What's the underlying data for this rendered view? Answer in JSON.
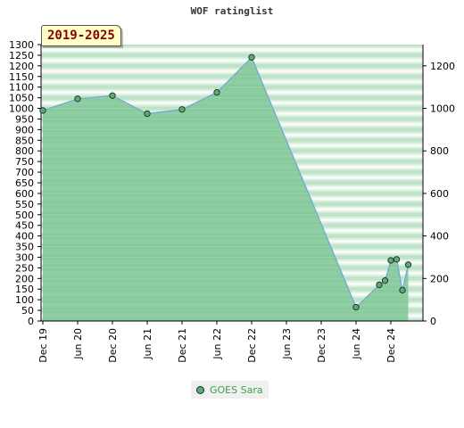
{
  "chart_data": {
    "type": "area",
    "title": "WOF ratinglist",
    "period": "2019-2025",
    "x_tick_labels": [
      "Dec 19",
      "Jun 20",
      "Dec 20",
      "Jun 21",
      "Dec 21",
      "Jun 22",
      "Dec 22",
      "Jun 23",
      "Dec 23",
      "Jun 24",
      "Dec 24"
    ],
    "y_left": {
      "min": 0,
      "max": 1300,
      "step": 50
    },
    "y_right": {
      "min": 0,
      "max": 1300,
      "ticks": [
        0,
        200,
        400,
        600,
        800,
        1000,
        1200
      ]
    },
    "series": [
      {
        "name": "GOES Sara",
        "x": [
          "Dec 19",
          "Jun 20",
          "Dec 20",
          "Jun 21",
          "Dec 21",
          "Jun 22",
          "Dec 22",
          "Jun 24",
          "Oct 24",
          "Nov 24",
          "Dec 24",
          "Jan 25",
          "Feb 25",
          "Mar 25"
        ],
        "values": [
          990,
          1045,
          1060,
          975,
          995,
          1075,
          1240,
          65,
          170,
          190,
          285,
          290,
          145,
          265
        ]
      }
    ],
    "grid": true,
    "legend_position": "bottom"
  },
  "colors": {
    "area_fill": "#7cc594",
    "line": "#6fa3d8",
    "marker": "#56b06a",
    "badge_text": "#880000",
    "legend_text": "#3aa24e"
  }
}
